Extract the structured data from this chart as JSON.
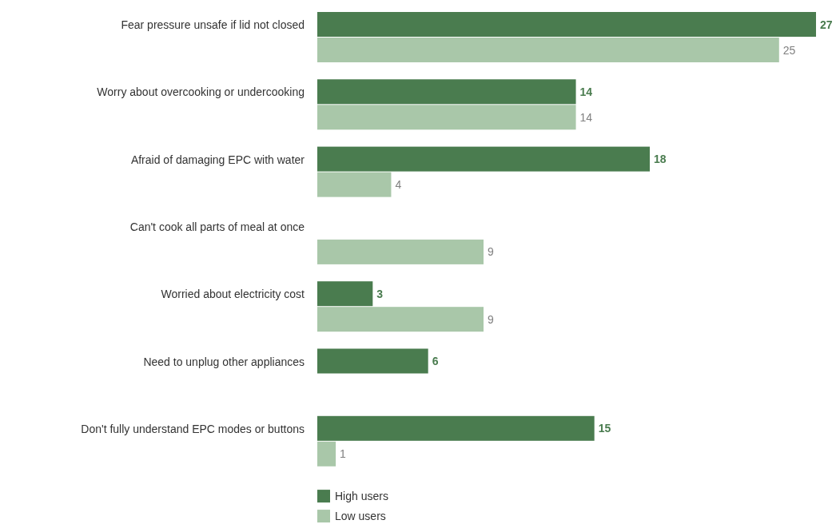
{
  "chart_data": {
    "type": "bar",
    "orientation": "horizontal",
    "categories": [
      "Fear pressure unsafe if lid not closed",
      "Worry about overcooking or undercooking",
      "Afraid of damaging EPC with water",
      "Can't cook all parts of meal at once",
      "Worried about electricity cost",
      "Need to unplug other appliances",
      "Don't fully understand EPC modes or buttons"
    ],
    "series": [
      {
        "name": "High users",
        "color": "#4a7c4f",
        "values": [
          27,
          14,
          18,
          null,
          3,
          6,
          15
        ]
      },
      {
        "name": "Low users",
        "color": "#a9c7a9",
        "values": [
          25,
          14,
          4,
          9,
          9,
          null,
          1
        ]
      }
    ],
    "data_labels": true,
    "legend": "bottom left"
  }
}
